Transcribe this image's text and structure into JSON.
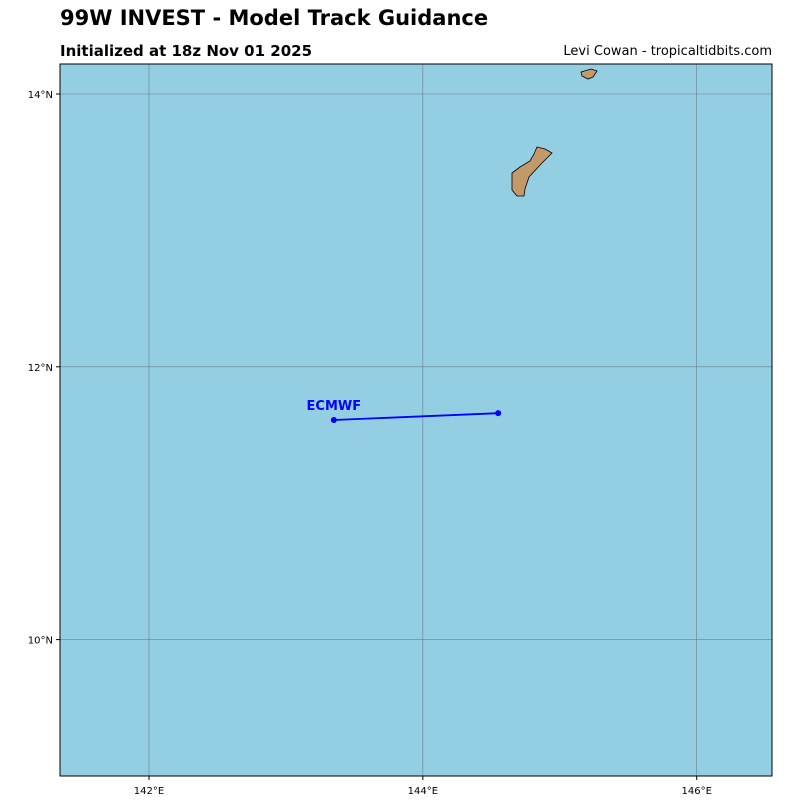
{
  "header": {
    "title": "99W INVEST - Model Track Guidance",
    "subtitle": "Initialized at 18z Nov 01 2025",
    "credit": "Levi Cowan - tropicaltidbits.com"
  },
  "colors": {
    "ocean": "#94cee3",
    "land": "#c4996a",
    "grid": "#5a6a70",
    "track": "#0000ff"
  },
  "map": {
    "lon_range": [
      141.35,
      146.55
    ],
    "lat_range": [
      9.0,
      14.22
    ],
    "x_ticks": [
      {
        "value": 142,
        "label": "142°E"
      },
      {
        "value": 144,
        "label": "144°E"
      },
      {
        "value": 146,
        "label": "146°E"
      }
    ],
    "y_ticks": [
      {
        "value": 14,
        "label": "14°N"
      },
      {
        "value": 12,
        "label": "12°N"
      },
      {
        "value": 10,
        "label": "10°N"
      }
    ]
  },
  "chart_data": {
    "type": "scatter",
    "series": [
      {
        "name": "ECMWF",
        "points": [
          {
            "lon": 143.35,
            "lat": 11.61
          },
          {
            "lon": 144.55,
            "lat": 11.66
          }
        ]
      }
    ]
  },
  "land": [
    {
      "name": "Guam",
      "icon": "island-shape"
    },
    {
      "name": "Rota",
      "icon": "island-shape"
    }
  ]
}
